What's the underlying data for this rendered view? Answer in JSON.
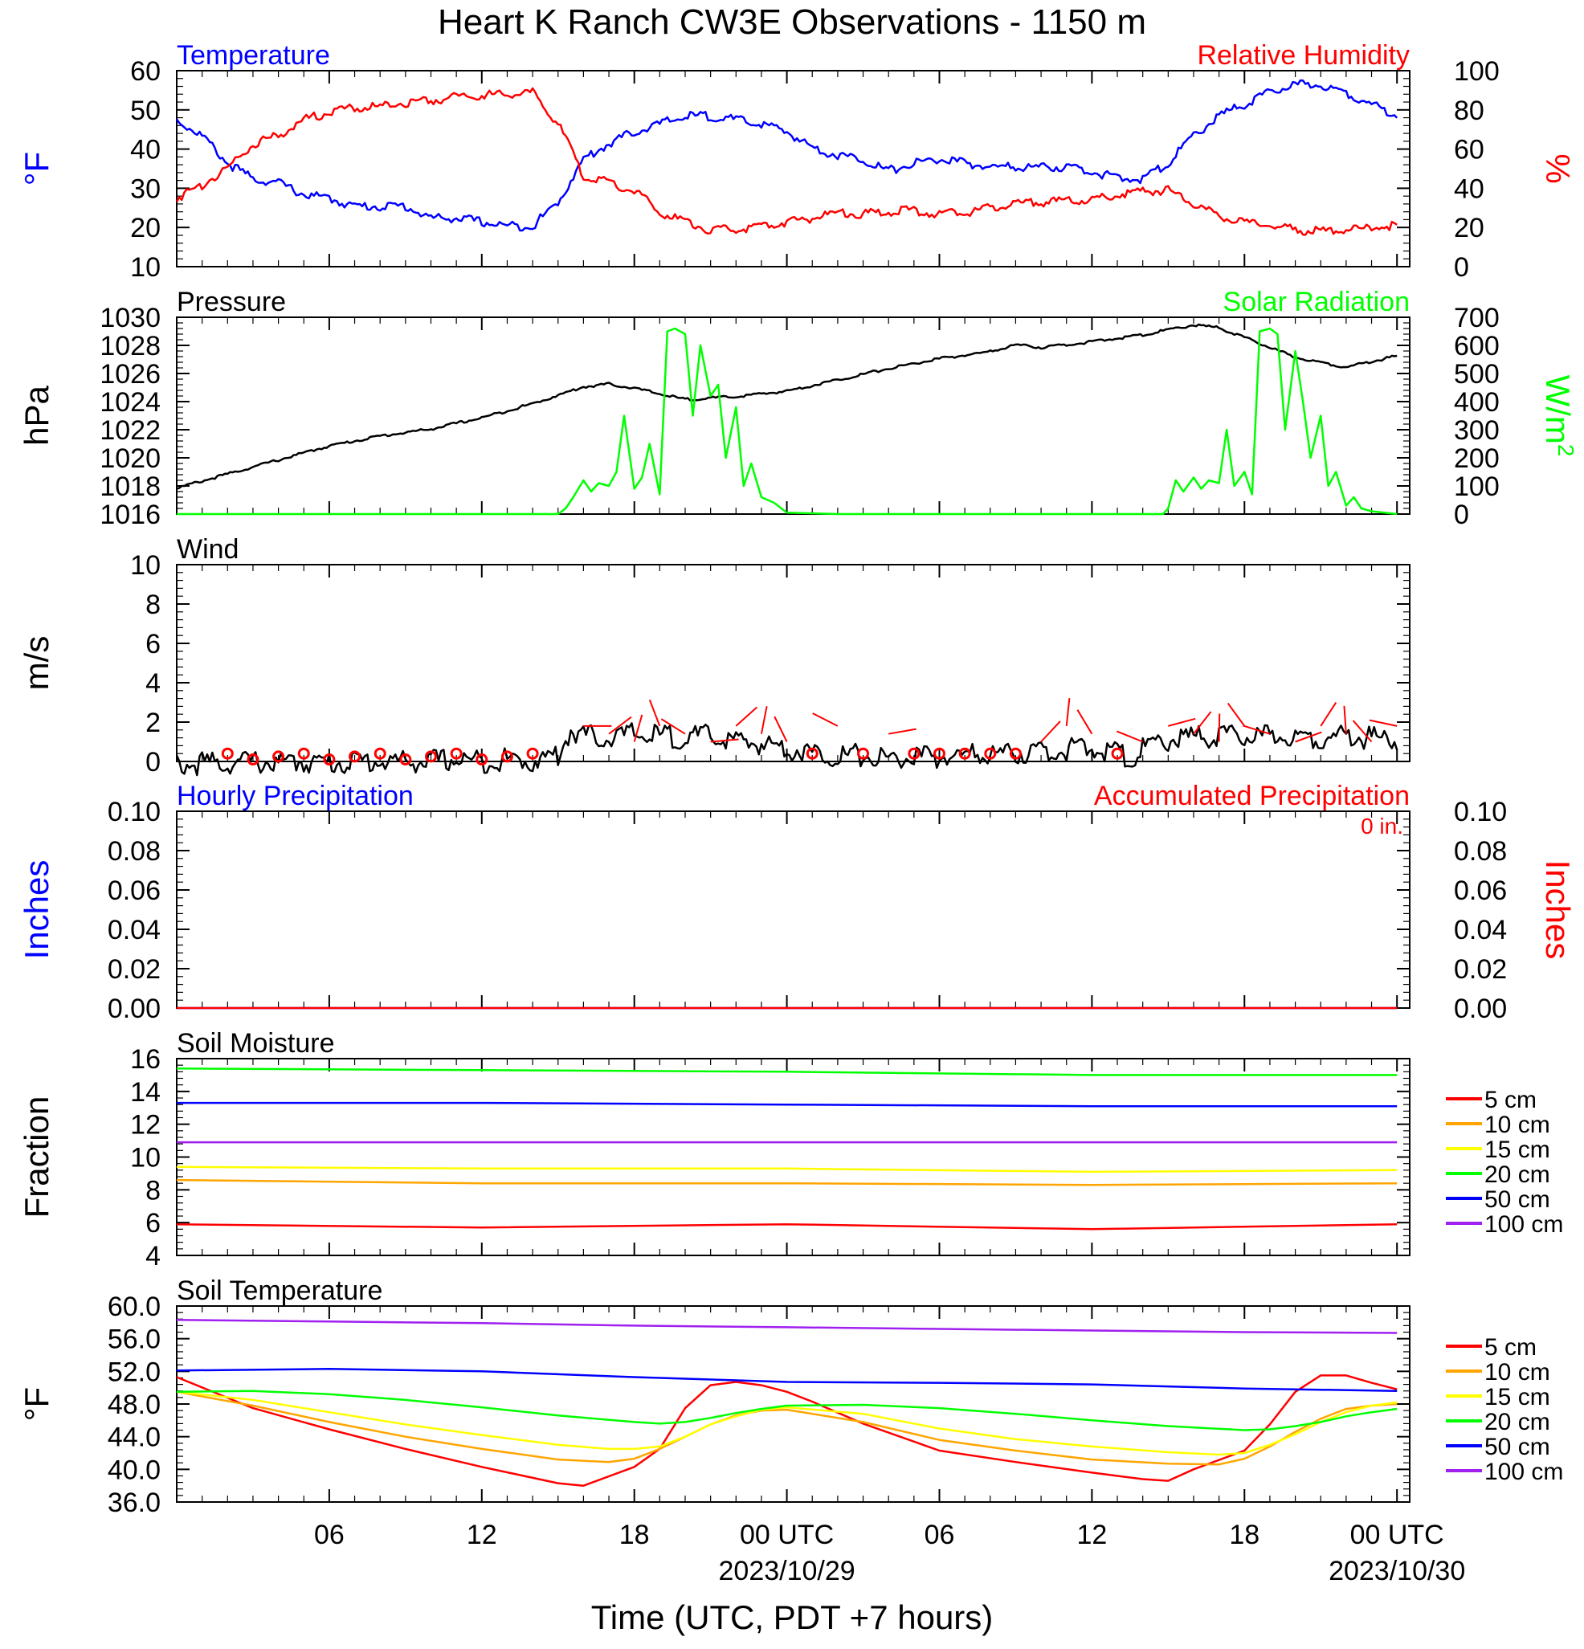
{
  "title": "Heart K Ranch CW3E Observations - 1150 m",
  "xlabel": "Time (UTC, PDT +7 hours)",
  "x_ticks": [
    {
      "h": 6,
      "label": "06"
    },
    {
      "h": 12,
      "label": "12"
    },
    {
      "h": 18,
      "label": "18"
    },
    {
      "h": 24,
      "label": "00 UTC",
      "date": "2023/10/29"
    },
    {
      "h": 30,
      "label": "06"
    },
    {
      "h": 36,
      "label": "12"
    },
    {
      "h": 42,
      "label": "18"
    },
    {
      "h": 48,
      "label": "00 UTC",
      "date": "2023/10/30"
    }
  ],
  "colors": {
    "temperature": "#0000ff",
    "humidity": "#ff0000",
    "pressure": "#000000",
    "solar": "#00ff00",
    "wind": "#000000",
    "barb": "#ff0000",
    "precip_hourly": "#0000ff",
    "precip_accum": "#ff0000",
    "d5": "#ff0000",
    "d10": "#ffa500",
    "d15": "#ffff00",
    "d20": "#00ff00",
    "d50": "#0000ff",
    "d100": "#a020f0"
  },
  "chart_data": [
    {
      "type": "line",
      "panel": "Temperature / Relative Humidity",
      "left_title": "Temperature",
      "right_title": "Relative Humidity",
      "ylabel_left": "°F",
      "ylabel_right": "%",
      "ylim_left": [
        10,
        60
      ],
      "ylim_right": [
        0,
        100
      ],
      "yticks_left": [
        "10",
        "20",
        "30",
        "40",
        "50",
        "60"
      ],
      "yticks_right": [
        "0",
        "20",
        "40",
        "60",
        "80",
        "100"
      ],
      "series": [
        {
          "name": "Temperature",
          "axis": "left",
          "x": [
            0,
            1,
            2,
            3,
            4,
            5,
            6,
            7,
            8,
            9,
            10,
            11,
            12,
            13,
            14,
            15,
            16,
            17,
            18,
            19,
            20,
            21,
            22,
            23,
            24,
            25,
            26,
            27,
            28,
            29,
            30,
            31,
            32,
            33,
            34,
            35,
            36,
            37,
            38,
            39,
            40,
            41,
            42,
            43,
            44,
            45,
            46,
            47,
            48
          ],
          "y": [
            48,
            44,
            37,
            33,
            32,
            29,
            28,
            26,
            26,
            26,
            23,
            23,
            22,
            21,
            21,
            27,
            38,
            42,
            45,
            47,
            49,
            49,
            48,
            47,
            45,
            41,
            39,
            38,
            35,
            37,
            38,
            37,
            36,
            36,
            36,
            36,
            35,
            33,
            33,
            37,
            44,
            49,
            52,
            55,
            57,
            57,
            55,
            52,
            49
          ]
        },
        {
          "name": "Relative Humidity",
          "axis": "right",
          "x": [
            0,
            1,
            2,
            3,
            4,
            5,
            6,
            7,
            8,
            9,
            10,
            11,
            12,
            13,
            14,
            15,
            16,
            17,
            18,
            19,
            20,
            21,
            22,
            23,
            24,
            25,
            26,
            27,
            28,
            29,
            30,
            31,
            32,
            33,
            34,
            35,
            36,
            37,
            38,
            39,
            40,
            41,
            42,
            43,
            44,
            45,
            46,
            47,
            48
          ],
          "y": [
            36,
            43,
            52,
            64,
            68,
            76,
            80,
            82,
            83,
            85,
            86,
            88,
            89,
            89,
            90,
            74,
            48,
            44,
            40,
            29,
            24,
            20,
            20,
            22,
            24,
            26,
            29,
            28,
            29,
            30,
            28,
            29,
            31,
            33,
            34,
            35,
            35,
            38,
            40,
            40,
            33,
            27,
            24,
            22,
            20,
            19,
            20,
            21,
            22
          ]
        }
      ]
    },
    {
      "type": "line",
      "panel": "Pressure / Solar Radiation",
      "left_title": "Pressure",
      "right_title": "Solar Radiation",
      "ylabel_left": "hPa",
      "ylabel_right": "W/m2",
      "ylim_left": [
        1016,
        1030
      ],
      "ylim_right": [
        0,
        700
      ],
      "yticks_left": [
        "1016",
        "1018",
        "1020",
        "1022",
        "1024",
        "1026",
        "1028",
        "1030"
      ],
      "yticks_right": [
        "0",
        "100",
        "200",
        "300",
        "400",
        "500",
        "600",
        "700"
      ],
      "series": [
        {
          "name": "Pressure",
          "axis": "left",
          "x": [
            0,
            2,
            4,
            6,
            8,
            10,
            12,
            14,
            16,
            17,
            18,
            19,
            20,
            22,
            24,
            26,
            28,
            30,
            32,
            33,
            34,
            36,
            38,
            40,
            41,
            42,
            44,
            46,
            48
          ],
          "y": [
            1017.9,
            1018.9,
            1019.9,
            1020.9,
            1021.6,
            1022.1,
            1022.9,
            1023.9,
            1025.1,
            1025.3,
            1025.0,
            1024.6,
            1024.2,
            1024.4,
            1024.8,
            1025.6,
            1026.4,
            1027.1,
            1027.6,
            1028.1,
            1027.9,
            1028.3,
            1028.8,
            1029.5,
            1029.3,
            1028.6,
            1027.2,
            1026.5,
            1027.3
          ]
        },
        {
          "name": "Solar Radiation",
          "axis": "right",
          "x": [
            0,
            15.0,
            15.3,
            15.6,
            16,
            16.3,
            16.6,
            17,
            17.3,
            17.6,
            18,
            18.3,
            18.6,
            19,
            19.3,
            19.6,
            20,
            20.3,
            20.6,
            21,
            21.3,
            21.6,
            22,
            22.3,
            22.6,
            23,
            23.5,
            24,
            26,
            30,
            36,
            38.8,
            39.0,
            39.3,
            39.6,
            40,
            40.3,
            40.6,
            41,
            41.3,
            41.6,
            42,
            42.3,
            42.6,
            43,
            43.3,
            43.6,
            44,
            44.3,
            44.6,
            45,
            45.3,
            45.6,
            46,
            46.3,
            46.6,
            47,
            47.5,
            48
          ],
          "y": [
            0,
            0,
            20,
            60,
            120,
            80,
            110,
            100,
            150,
            350,
            90,
            130,
            250,
            70,
            650,
            660,
            640,
            350,
            600,
            420,
            460,
            200,
            380,
            100,
            180,
            60,
            40,
            5,
            0,
            0,
            0,
            0,
            20,
            120,
            80,
            130,
            90,
            120,
            110,
            300,
            100,
            150,
            70,
            650,
            660,
            640,
            300,
            580,
            400,
            200,
            350,
            100,
            150,
            30,
            60,
            20,
            10,
            5,
            0
          ]
        }
      ]
    },
    {
      "type": "line",
      "panel": "Wind",
      "left_title": "Wind",
      "ylabel_left": "m/s",
      "ylim_left": [
        0,
        10
      ],
      "yticks_left": [
        "0",
        "2",
        "4",
        "6",
        "8",
        "10"
      ],
      "series": [
        {
          "name": "Wind",
          "axis": "left",
          "x": [
            0,
            1,
            2,
            3,
            4,
            5,
            6,
            7,
            8,
            9,
            10,
            11,
            12,
            13,
            14,
            14.5,
            15,
            15.5,
            16,
            17,
            18,
            19,
            20,
            21,
            22,
            23,
            24,
            25,
            26,
            27,
            28,
            29,
            30,
            31,
            32,
            33,
            34,
            35,
            36,
            37,
            37.5,
            38,
            39,
            40,
            41,
            42,
            43,
            44,
            45,
            46,
            47,
            48
          ],
          "y": [
            0.1,
            0.2,
            0.2,
            0.3,
            0.2,
            0.3,
            0.2,
            0.3,
            0.3,
            0.3,
            0.3,
            0.4,
            0.3,
            0.4,
            0.3,
            0.5,
            0.6,
            1.9,
            1.6,
            1.5,
            1.7,
            1.6,
            1.5,
            1.6,
            1.3,
            1.2,
            1.0,
            0.7,
            0.6,
            0.6,
            0.4,
            0.5,
            0.5,
            0.6,
            0.7,
            0.7,
            0.8,
            0.9,
            0.9,
            0.8,
            0.4,
            0.9,
            1.4,
            1.5,
            1.6,
            1.5,
            1.6,
            1.6,
            1.5,
            1.6,
            1.5,
            1.4
          ]
        }
      ]
    },
    {
      "type": "line",
      "panel": "Precipitation",
      "left_title": "Hourly Precipitation",
      "right_title": "Accumulated Precipitation",
      "annotation": "0 in.",
      "ylabel_left": "Inches",
      "ylabel_right": "Inches",
      "ylim_left": [
        0,
        0.1
      ],
      "ylim_right": [
        0,
        0.1
      ],
      "yticks_left": [
        "0.00",
        "0.02",
        "0.04",
        "0.06",
        "0.08",
        "0.10"
      ],
      "yticks_right": [
        "0.00",
        "0.02",
        "0.04",
        "0.06",
        "0.08",
        "0.10"
      ],
      "series": [
        {
          "name": "Hourly Precipitation",
          "axis": "left",
          "x": [
            0,
            48
          ],
          "y": [
            0,
            0
          ]
        },
        {
          "name": "Accumulated Precipitation",
          "axis": "right",
          "x": [
            0,
            48
          ],
          "y": [
            0,
            0
          ]
        }
      ]
    },
    {
      "type": "line",
      "panel": "Soil Moisture",
      "left_title": "Soil Moisture",
      "ylabel_left": "Fraction",
      "ylim_left": [
        4,
        16
      ],
      "yticks_left": [
        "4",
        "6",
        "8",
        "10",
        "12",
        "14",
        "16"
      ],
      "series": [
        {
          "name": "5 cm",
          "x": [
            0,
            12,
            24,
            36,
            48
          ],
          "y": [
            5.9,
            5.7,
            5.9,
            5.6,
            5.9
          ]
        },
        {
          "name": "10 cm",
          "x": [
            0,
            12,
            24,
            36,
            48
          ],
          "y": [
            8.6,
            8.4,
            8.4,
            8.3,
            8.4
          ]
        },
        {
          "name": "15 cm",
          "x": [
            0,
            12,
            24,
            36,
            48
          ],
          "y": [
            9.4,
            9.3,
            9.3,
            9.1,
            9.2
          ]
        },
        {
          "name": "20 cm",
          "x": [
            0,
            12,
            24,
            36,
            48
          ],
          "y": [
            15.4,
            15.3,
            15.2,
            15.0,
            15.0
          ]
        },
        {
          "name": "50 cm",
          "x": [
            0,
            12,
            24,
            36,
            48
          ],
          "y": [
            13.3,
            13.3,
            13.2,
            13.1,
            13.1
          ]
        },
        {
          "name": "100 cm",
          "x": [
            0,
            12,
            24,
            36,
            48
          ],
          "y": [
            10.9,
            10.9,
            10.9,
            10.9,
            10.9
          ]
        }
      ]
    },
    {
      "type": "line",
      "panel": "Soil Temperature",
      "left_title": "Soil Temperature",
      "ylabel_left": "°F",
      "ylim_left": [
        36,
        60
      ],
      "yticks_left": [
        "36.0",
        "40.0",
        "44.0",
        "48.0",
        "52.0",
        "56.0",
        "60.0"
      ],
      "series": [
        {
          "name": "5 cm",
          "x": [
            0,
            3,
            6,
            9,
            12,
            15,
            16,
            18,
            19,
            20,
            21,
            22,
            23,
            24,
            25,
            27,
            30,
            33,
            36,
            38,
            39,
            40,
            42,
            43,
            44,
            45,
            46,
            47,
            48
          ],
          "y": [
            51.3,
            47.5,
            44.9,
            42.5,
            40.3,
            38.3,
            38.0,
            40.3,
            42.5,
            47.5,
            50.3,
            50.7,
            50.3,
            49.5,
            48.3,
            45.6,
            42.3,
            40.9,
            39.6,
            38.8,
            38.6,
            40.0,
            42.3,
            45.5,
            49.5,
            51.5,
            51.5,
            50.6,
            49.8
          ]
        },
        {
          "name": "10 cm",
          "x": [
            0,
            3,
            6,
            9,
            12,
            15,
            17,
            18,
            19,
            20,
            21,
            22,
            23,
            24,
            27,
            30,
            33,
            36,
            39,
            41,
            42,
            43,
            44,
            45,
            46,
            47,
            48
          ],
          "y": [
            49.5,
            47.8,
            45.8,
            44.0,
            42.5,
            41.2,
            40.9,
            41.3,
            42.5,
            44.0,
            45.5,
            46.6,
            47.2,
            47.3,
            45.8,
            43.6,
            42.3,
            41.2,
            40.7,
            40.6,
            41.3,
            42.8,
            44.6,
            46.2,
            47.4,
            47.8,
            48.0
          ]
        },
        {
          "name": "15 cm",
          "x": [
            0,
            3,
            6,
            9,
            12,
            15,
            17,
            18,
            19,
            20,
            21,
            22,
            23,
            24,
            27,
            30,
            33,
            36,
            39,
            41,
            42,
            43,
            44,
            45,
            46,
            47,
            48
          ],
          "y": [
            49.5,
            48.5,
            47.0,
            45.5,
            44.2,
            43.0,
            42.5,
            42.5,
            42.8,
            44.0,
            45.5,
            46.5,
            47.3,
            47.6,
            46.8,
            45.0,
            43.7,
            42.8,
            42.1,
            41.8,
            42.0,
            43.0,
            44.3,
            45.8,
            47.0,
            47.8,
            48.2
          ]
        },
        {
          "name": "20 cm",
          "x": [
            0,
            3,
            6,
            9,
            12,
            15,
            18,
            19,
            20,
            21,
            22,
            23,
            24,
            27,
            30,
            33,
            36,
            39,
            42,
            43,
            44,
            45,
            46,
            47,
            48
          ],
          "y": [
            49.5,
            49.6,
            49.2,
            48.5,
            47.6,
            46.6,
            45.8,
            45.6,
            45.8,
            46.3,
            46.9,
            47.4,
            47.8,
            47.9,
            47.5,
            46.8,
            46.0,
            45.3,
            44.8,
            44.9,
            45.3,
            45.8,
            46.5,
            47.0,
            47.4
          ]
        },
        {
          "name": "50 cm",
          "x": [
            0,
            6,
            12,
            18,
            24,
            30,
            36,
            42,
            48
          ],
          "y": [
            52.1,
            52.3,
            52.0,
            51.3,
            50.7,
            50.6,
            50.4,
            49.9,
            49.6
          ]
        },
        {
          "name": "100 cm",
          "x": [
            0,
            6,
            12,
            18,
            24,
            30,
            36,
            42,
            48
          ],
          "y": [
            58.3,
            58.1,
            57.9,
            57.6,
            57.4,
            57.2,
            57.0,
            56.8,
            56.7
          ]
        }
      ]
    }
  ]
}
